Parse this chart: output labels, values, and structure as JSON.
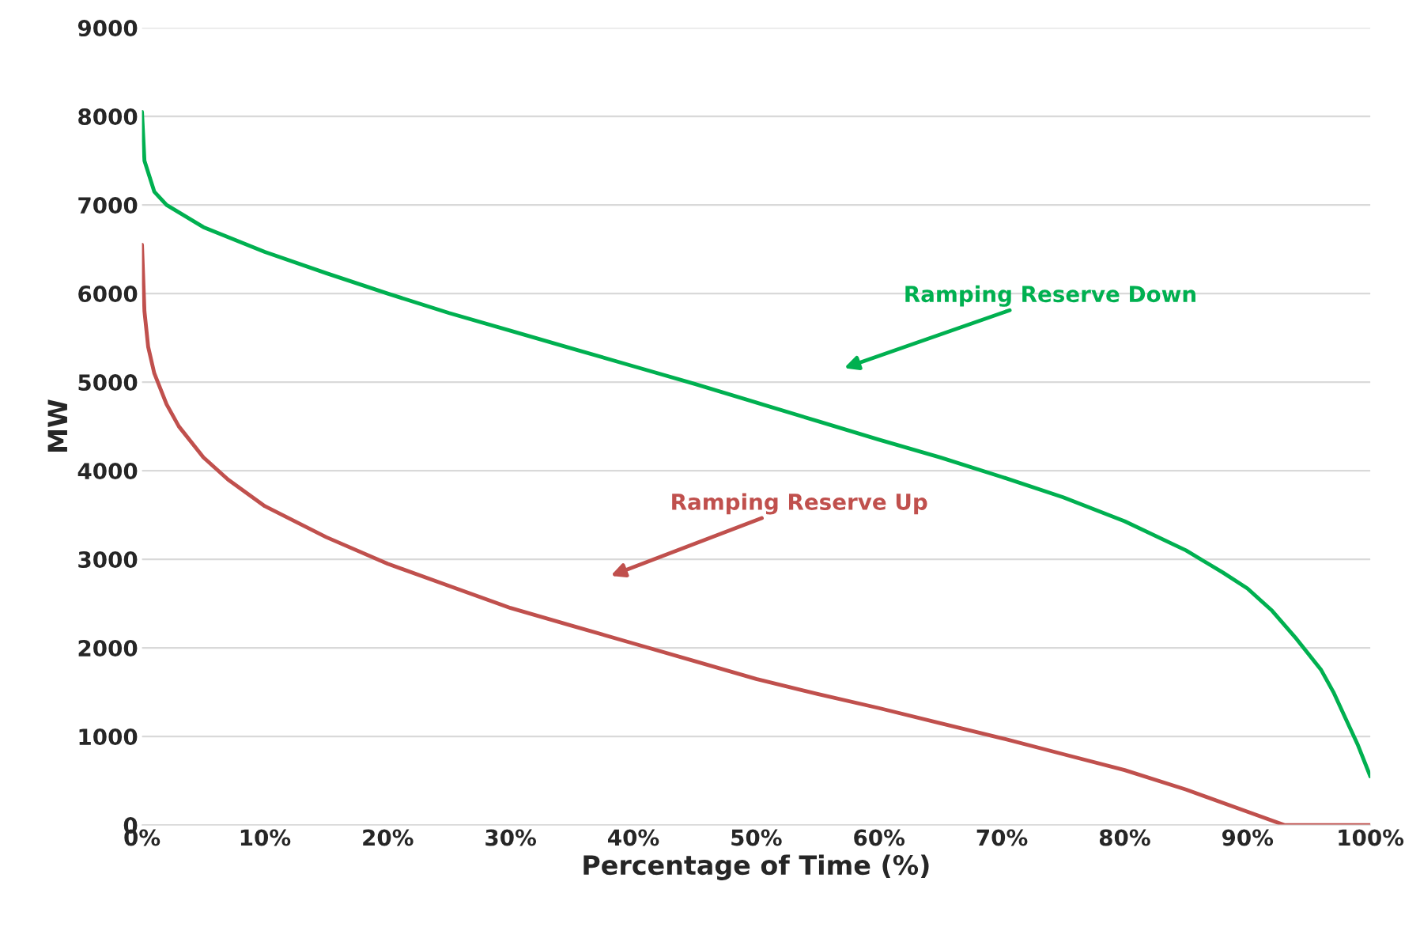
{
  "chart_data": {
    "type": "line",
    "xlabel": "Percentage of Time (%)",
    "ylabel": "MW",
    "xlim": [
      0,
      100
    ],
    "xticks": [
      {
        "value": 0,
        "label": "0%"
      },
      {
        "value": 10,
        "label": "10%"
      },
      {
        "value": 20,
        "label": "20%"
      },
      {
        "value": 30,
        "label": "30%"
      },
      {
        "value": 40,
        "label": "40%"
      },
      {
        "value": 50,
        "label": "50%"
      },
      {
        "value": 60,
        "label": "60%"
      },
      {
        "value": 70,
        "label": "70%"
      },
      {
        "value": 80,
        "label": "80%"
      },
      {
        "value": 90,
        "label": "90%"
      },
      {
        "value": 100,
        "label": "100%"
      }
    ],
    "ylim": [
      0,
      9000
    ],
    "yticks": [
      0,
      1000,
      2000,
      3000,
      4000,
      5000,
      6000,
      7000,
      8000,
      9000
    ],
    "grid": "y",
    "legend": false,
    "marker": "none",
    "line_style": "solid",
    "series": [
      {
        "name": "Ramping Reserve Down",
        "color": "#00b050",
        "x": [
          0,
          0.2,
          1,
          2,
          5,
          10,
          15,
          20,
          25,
          30,
          35,
          40,
          45,
          50,
          55,
          60,
          65,
          70,
          75,
          80,
          85,
          88,
          90,
          92,
          94,
          96,
          97,
          98,
          99,
          100
        ],
        "values": [
          8050,
          7500,
          7150,
          7000,
          6750,
          6470,
          6230,
          6000,
          5780,
          5580,
          5380,
          5180,
          4980,
          4770,
          4560,
          4350,
          4150,
          3930,
          3700,
          3430,
          3100,
          2850,
          2670,
          2420,
          2100,
          1750,
          1500,
          1200,
          900,
          550
        ]
      },
      {
        "name": "Ramping Reserve Up",
        "color": "#c0504d",
        "x": [
          0,
          0.2,
          0.5,
          1,
          2,
          3,
          5,
          7,
          10,
          15,
          20,
          25,
          30,
          35,
          40,
          45,
          50,
          55,
          60,
          65,
          70,
          75,
          80,
          85,
          90,
          93,
          100
        ],
        "values": [
          6550,
          5800,
          5400,
          5100,
          4750,
          4500,
          4150,
          3900,
          3600,
          3250,
          2950,
          2700,
          2450,
          2250,
          2050,
          1850,
          1650,
          1480,
          1320,
          1150,
          980,
          800,
          620,
          400,
          150,
          0,
          0
        ]
      }
    ]
  }
}
